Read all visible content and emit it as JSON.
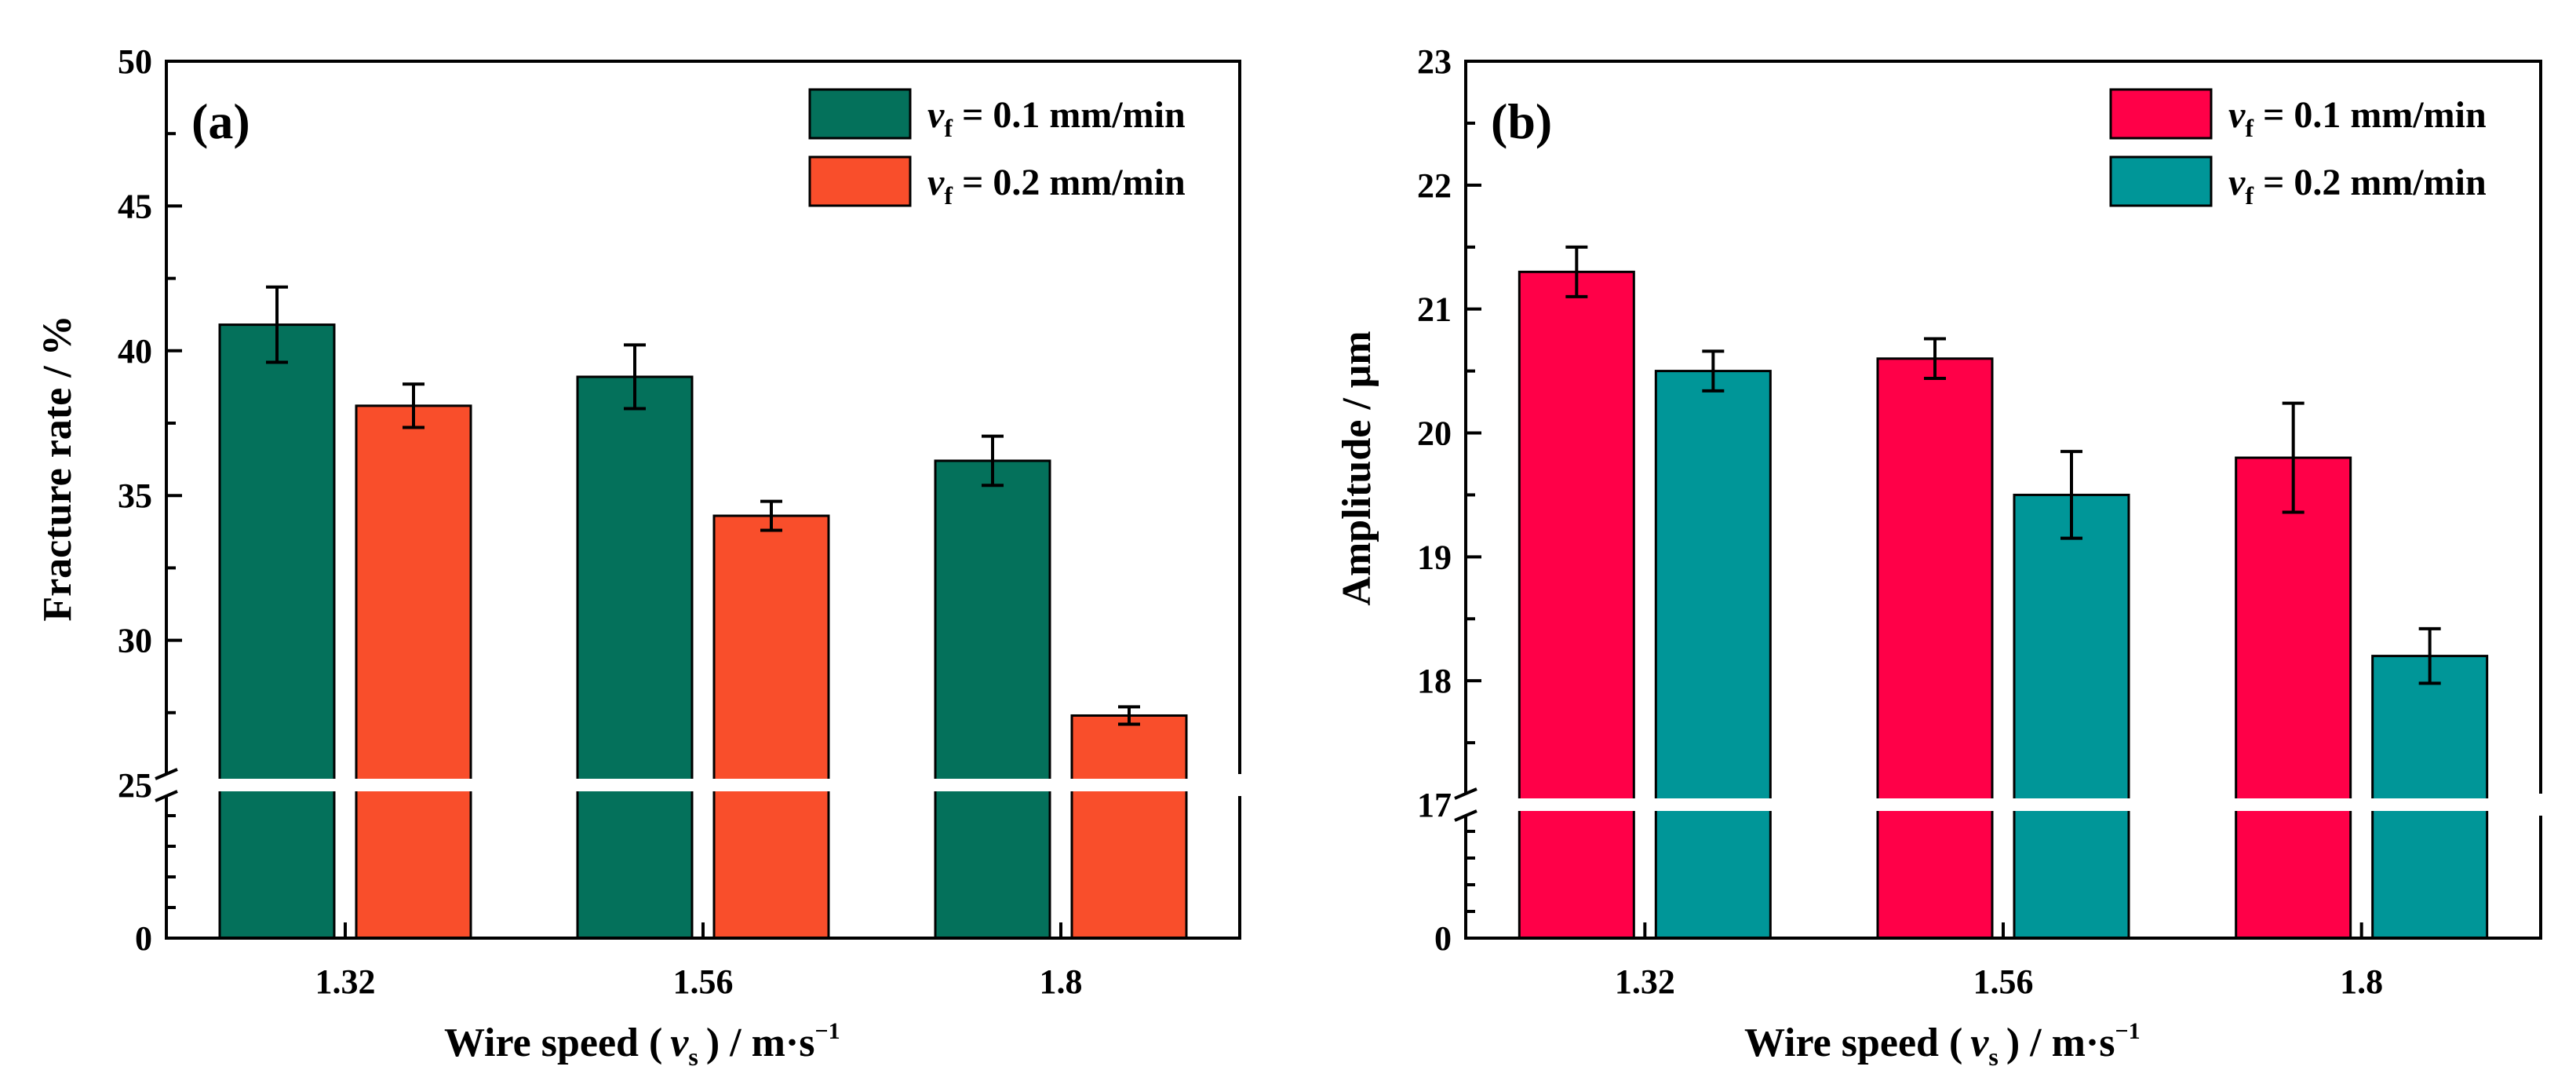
{
  "chart_data": [
    {
      "type": "bar",
      "panel_label": "(a)",
      "categories": [
        "1.32",
        "1.56",
        "1.8"
      ],
      "series": [
        {
          "name": "vf = 0.1 mm/min",
          "color": "#04715B",
          "values": [
            40.9,
            39.1,
            36.2
          ],
          "errors": [
            1.3,
            1.1,
            0.85
          ]
        },
        {
          "name": "vf = 0.2 mm/min",
          "color": "#F94E2B",
          "values": [
            38.1,
            34.3,
            27.4
          ],
          "errors": [
            0.75,
            0.5,
            0.3
          ]
        }
      ],
      "ylabel": "Fracture rate / %",
      "xlabel": {
        "prefix": "Wire speed (",
        "var": "v",
        "var_sub": "s",
        "mid": ") / m·s",
        "sup": "−1"
      },
      "ylim": [
        0,
        50
      ],
      "axis_break": {
        "lower_range": [
          0,
          25
        ],
        "upper_range": [
          25,
          50
        ]
      },
      "y_ticks": [
        "0",
        "25",
        "30",
        "35",
        "40",
        "45",
        "50"
      ],
      "legend": [
        {
          "var": "v",
          "sub": "f",
          "text": " = 0.1 mm/min"
        },
        {
          "var": "v",
          "sub": "f",
          "text": " = 0.2 mm/min"
        }
      ],
      "legend_position": "top-right"
    },
    {
      "type": "bar",
      "panel_label": "(b)",
      "categories": [
        "1.32",
        "1.56",
        "1.8"
      ],
      "series": [
        {
          "name": "vf = 0.1 mm/min",
          "color": "#FF0048",
          "values": [
            21.3,
            20.6,
            19.8
          ],
          "errors": [
            0.2,
            0.16,
            0.44
          ]
        },
        {
          "name": "vf = 0.2 mm/min",
          "color": "#009698",
          "values": [
            20.5,
            19.5,
            18.2
          ],
          "errors": [
            0.16,
            0.35,
            0.22
          ]
        }
      ],
      "ylabel": "Amplitude / μm",
      "xlabel": {
        "prefix": "Wire speed (",
        "var": "v",
        "var_sub": "s",
        "mid": ") / m·s",
        "sup": "−1"
      },
      "ylim": [
        0,
        23
      ],
      "axis_break": {
        "lower_range": [
          0,
          17
        ],
        "upper_range": [
          17,
          23
        ]
      },
      "y_ticks": [
        "0",
        "17",
        "18",
        "19",
        "20",
        "21",
        "22",
        "23"
      ],
      "legend": [
        {
          "var": "v",
          "sub": "f",
          "text": " = 0.1 mm/min"
        },
        {
          "var": "v",
          "sub": "f",
          "text": " = 0.2 mm/min"
        }
      ],
      "legend_position": "top-right"
    }
  ]
}
